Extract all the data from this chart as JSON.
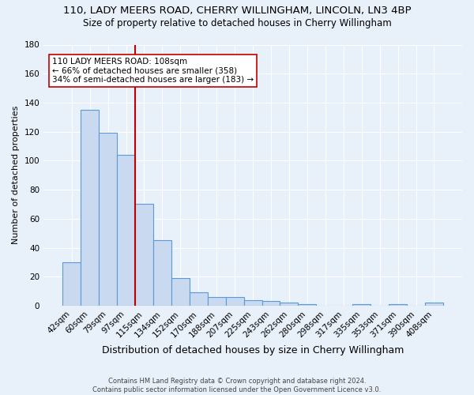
{
  "title1": "110, LADY MEERS ROAD, CHERRY WILLINGHAM, LINCOLN, LN3 4BP",
  "title2": "Size of property relative to detached houses in Cherry Willingham",
  "xlabel": "Distribution of detached houses by size in Cherry Willingham",
  "ylabel": "Number of detached properties",
  "footnote1": "Contains HM Land Registry data © Crown copyright and database right 2024.",
  "footnote2": "Contains public sector information licensed under the Open Government Licence v3.0.",
  "categories": [
    "42sqm",
    "60sqm",
    "79sqm",
    "97sqm",
    "115sqm",
    "134sqm",
    "152sqm",
    "170sqm",
    "188sqm",
    "207sqm",
    "225sqm",
    "243sqm",
    "262sqm",
    "280sqm",
    "298sqm",
    "317sqm",
    "335sqm",
    "353sqm",
    "371sqm",
    "390sqm",
    "408sqm"
  ],
  "values": [
    30,
    135,
    119,
    104,
    70,
    45,
    19,
    9,
    6,
    6,
    4,
    3,
    2,
    1,
    0,
    0,
    1,
    0,
    1,
    0,
    2
  ],
  "bar_color": "#c8d9f0",
  "bar_edge_color": "#5b9bd5",
  "bar_edge_width": 0.8,
  "red_line_x": 3.5,
  "red_line_color": "#c00000",
  "annotation_line1": "110 LADY MEERS ROAD: 108sqm",
  "annotation_line2": "← 66% of detached houses are smaller (358)",
  "annotation_line3": "34% of semi-detached houses are larger (183) →",
  "annotation_box_color": "#ffffff",
  "annotation_box_edge_color": "#c00000",
  "ylim": [
    0,
    180
  ],
  "yticks": [
    0,
    20,
    40,
    60,
    80,
    100,
    120,
    140,
    160,
    180
  ],
  "bg_color": "#e8f0fa",
  "grid_color": "#ffffff",
  "title1_fontsize": 9.5,
  "title2_fontsize": 8.5,
  "xlabel_fontsize": 9,
  "ylabel_fontsize": 8,
  "tick_fontsize": 7.5,
  "annotation_fontsize": 7.5,
  "footnote_fontsize": 6
}
